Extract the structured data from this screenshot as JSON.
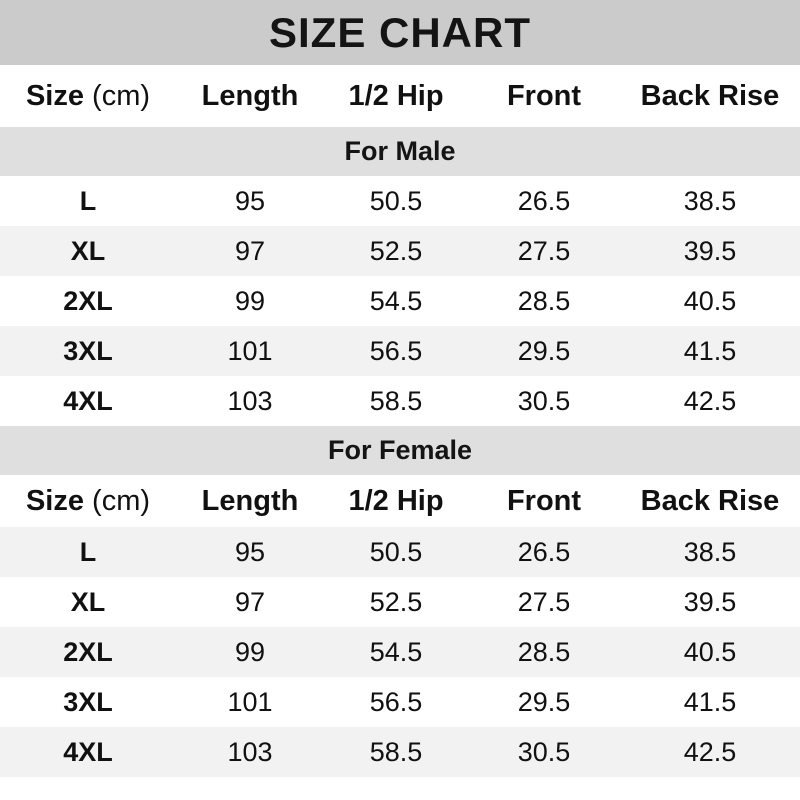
{
  "title": "SIZE CHART",
  "header": {
    "size_label": "Size",
    "size_unit": "(cm)",
    "length": "Length",
    "hip": "1/2 Hip",
    "front": "Front",
    "back_rise": "Back Rise"
  },
  "chart_data": {
    "type": "table",
    "title": "SIZE CHART",
    "columns": [
      "Size (cm)",
      "Length",
      "1/2 Hip",
      "Front",
      "Back Rise"
    ],
    "sections": [
      {
        "label": "For Male",
        "rows": [
          [
            "L",
            "95",
            "50.5",
            "26.5",
            "38.5"
          ],
          [
            "XL",
            "97",
            "52.5",
            "27.5",
            "39.5"
          ],
          [
            "2XL",
            "99",
            "54.5",
            "28.5",
            "40.5"
          ],
          [
            "3XL",
            "101",
            "56.5",
            "29.5",
            "41.5"
          ],
          [
            "4XL",
            "103",
            "58.5",
            "30.5",
            "42.5"
          ]
        ]
      },
      {
        "label": "For Female",
        "rows": [
          [
            "L",
            "95",
            "50.5",
            "26.5",
            "38.5"
          ],
          [
            "XL",
            "97",
            "52.5",
            "27.5",
            "39.5"
          ],
          [
            "2XL",
            "99",
            "54.5",
            "28.5",
            "40.5"
          ],
          [
            "3XL",
            "101",
            "56.5",
            "29.5",
            "41.5"
          ],
          [
            "4XL",
            "103",
            "58.5",
            "30.5",
            "42.5"
          ]
        ]
      }
    ]
  },
  "colors": {
    "title_banner": "#cbcbcb",
    "section_banner": "#dfdfdf",
    "alt_row_bg": "#f2f2f2",
    "text": "#111111"
  }
}
